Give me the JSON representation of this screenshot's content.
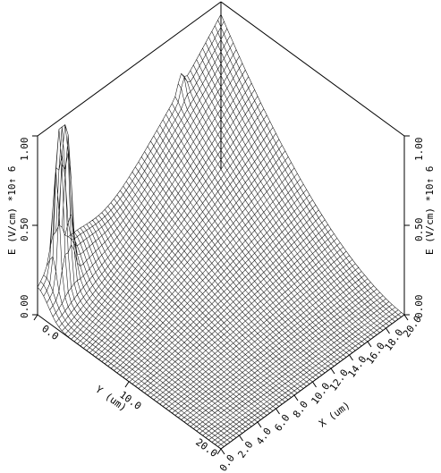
{
  "chart_data": {
    "type": "surface3d",
    "z_axis": {
      "label": "E (V/cm) *10↑ 6",
      "ticks": [
        "0.00",
        "0.50",
        "1.00"
      ],
      "range": [
        0,
        1.0
      ]
    },
    "y_axis": {
      "label": "Y (um)",
      "ticks": [
        "0.0",
        "10.0",
        "20.0"
      ],
      "range": [
        0,
        20
      ]
    },
    "x_axis": {
      "label": "X (um)",
      "ticks": [
        "0.0",
        "2.0",
        "4.0",
        "6.0",
        "8.0",
        "10.0",
        "12.0",
        "14.0",
        "16.0",
        "18.0",
        "20.0"
      ],
      "range": [
        0,
        20
      ]
    },
    "grid": false,
    "surface_description_points": [
      {
        "x": 20,
        "y": 0,
        "E": 0.93
      },
      {
        "x": 0,
        "y": 0,
        "E": 0.02
      },
      {
        "x": 0,
        "y": 20,
        "E": 0.0
      },
      {
        "x": 20,
        "y": 20,
        "E": 0.0
      }
    ]
  }
}
